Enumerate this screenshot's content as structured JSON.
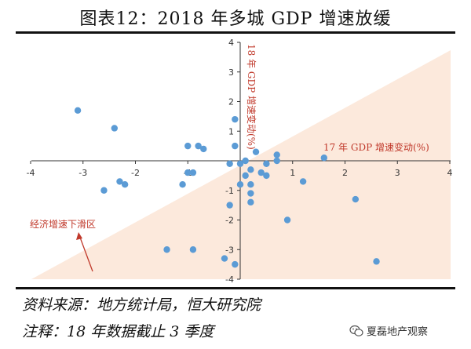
{
  "title": "图表12：2018 年多城 GDP 增速放缓",
  "footer": {
    "source": "资料来源：地方统计局，恒大研究院",
    "note": "注释：18 年数据截止 3 季度"
  },
  "watermark": {
    "text": "夏磊地产观察",
    "icon": "wechat-icon"
  },
  "colors": {
    "point": "#5b9bd5",
    "shade": "#fce9dc",
    "annotation": "#c0392b",
    "axis": "#333333"
  },
  "chart_data": {
    "type": "scatter",
    "xlabel": "17 年 GDP 增速变动(%)",
    "ylabel": "18 年 GDP 增速变动(%)",
    "xlim": [
      -4,
      4
    ],
    "ylim": [
      -4,
      4
    ],
    "xticks": [
      -4,
      -3,
      -2,
      -1,
      0,
      1,
      2,
      3,
      4
    ],
    "yticks": [
      -4,
      -3,
      -2,
      -1,
      1,
      2,
      3,
      4
    ],
    "shaded_region": "below y = x",
    "annotation": {
      "text": "经济增速下滑区",
      "target": "shaded region"
    },
    "points": [
      {
        "x": -3.1,
        "y": 1.7
      },
      {
        "x": -2.4,
        "y": 1.1
      },
      {
        "x": -2.6,
        "y": -1.0
      },
      {
        "x": -2.3,
        "y": -0.7
      },
      {
        "x": -2.2,
        "y": -0.8
      },
      {
        "x": -1.0,
        "y": 0.5
      },
      {
        "x": -0.8,
        "y": 0.5
      },
      {
        "x": -0.7,
        "y": 0.4
      },
      {
        "x": -1.0,
        "y": -0.4
      },
      {
        "x": -0.9,
        "y": -0.4
      },
      {
        "x": -1.1,
        "y": -0.8
      },
      {
        "x": -1.4,
        "y": -3.0
      },
      {
        "x": -0.9,
        "y": -3.0
      },
      {
        "x": -0.3,
        "y": -3.3
      },
      {
        "x": -0.1,
        "y": -3.5
      },
      {
        "x": -0.2,
        "y": -1.5
      },
      {
        "x": -0.1,
        "y": 1.4
      },
      {
        "x": -0.1,
        "y": 0.5
      },
      {
        "x": -0.2,
        "y": -0.1
      },
      {
        "x": 0.0,
        "y": -0.1
      },
      {
        "x": 0.1,
        "y": 0.0
      },
      {
        "x": 0.2,
        "y": -0.3
      },
      {
        "x": 0.3,
        "y": 0.3
      },
      {
        "x": 0.1,
        "y": -0.5
      },
      {
        "x": 0.0,
        "y": -0.8
      },
      {
        "x": 0.2,
        "y": -0.8
      },
      {
        "x": 0.2,
        "y": -1.1
      },
      {
        "x": 0.4,
        "y": -0.4
      },
      {
        "x": 0.5,
        "y": -0.1
      },
      {
        "x": 0.7,
        "y": 0.0
      },
      {
        "x": 0.7,
        "y": 0.2
      },
      {
        "x": 0.5,
        "y": -0.5
      },
      {
        "x": 0.2,
        "y": -1.4
      },
      {
        "x": 0.9,
        "y": -2.0
      },
      {
        "x": 1.2,
        "y": -0.7
      },
      {
        "x": 1.6,
        "y": 0.1
      },
      {
        "x": 2.2,
        "y": -1.3
      },
      {
        "x": 2.6,
        "y": -3.4
      }
    ]
  }
}
